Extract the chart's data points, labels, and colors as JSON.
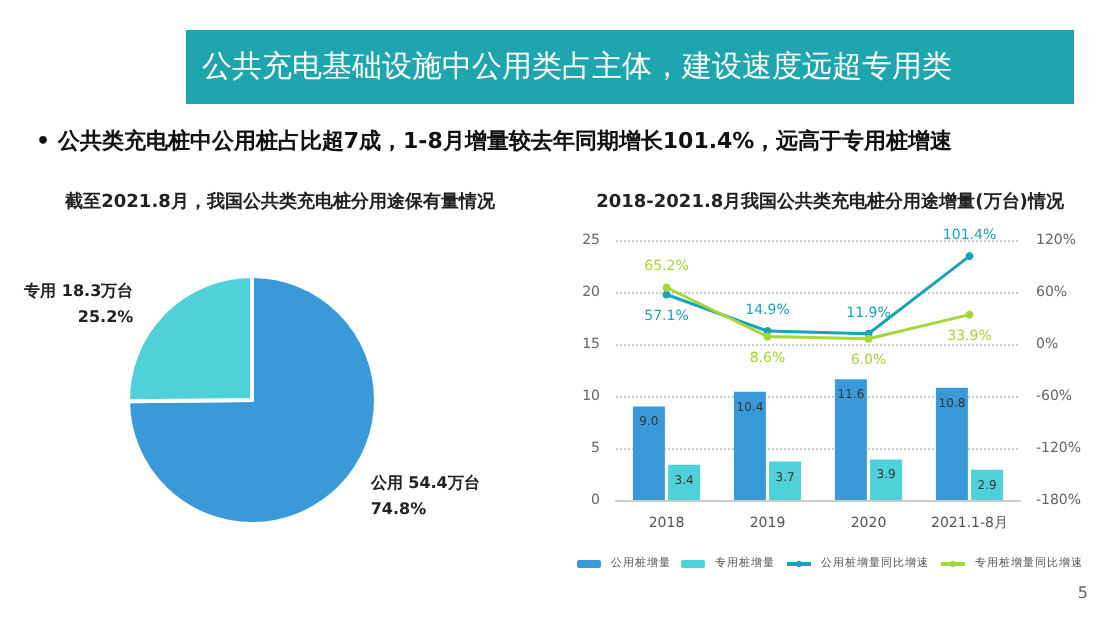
{
  "chart_data": [
    {
      "type": "pie",
      "title": "截至2021.8月，我国公共类充电桩分用途保有量情况",
      "categories": [
        "公用",
        "专用"
      ],
      "values": [
        54.4,
        18.3
      ],
      "colors": [
        "#3a9ad9",
        "#4fd1d9"
      ],
      "value_labels": [
        "54.4万台\n74.8%",
        "18.3万台\n25.2%"
      ],
      "annotations": [
        "公共充电基础设施中公用类占主体，建设速度远超专用类",
        "• 公共类充电桩中公用桩占比超7成，1-8月增量较去年同期增长101.4%，远高于专用桩增速",
        "5"
      ]
    },
    {
      "type": "bar",
      "title": "2018-2021.8月我国公共类充电桩分用途增量(万台)情况",
      "categories": [
        "2018",
        "2019",
        "2020",
        "2021.1-8月"
      ],
      "series": [
        {
          "name": "公用桩增量",
          "color": "#3a9ad9",
          "values": [
            9.0,
            10.4,
            11.6,
            10.8
          ],
          "value_labels": [
            "9.0",
            "10.4",
            "11.6",
            "10.8"
          ]
        },
        {
          "name": "专用桩增量",
          "color": "#4fd1d9",
          "values": [
            3.4,
            3.7,
            3.9,
            2.9
          ],
          "value_labels": [
            "3.4",
            "3.7",
            "3.9",
            "2.9"
          ]
        },
        {
          "name": "公用桩增量同比增速",
          "type": "line",
          "axis": "y2",
          "color": "#1aa3b8",
          "values": [
            57.1,
            14.9,
            11.9,
            101.4
          ],
          "value_labels": [
            "57.1%",
            "14.9%",
            "11.9%",
            "101.4%"
          ]
        },
        {
          "name": "专用桩增量同比增速",
          "type": "line",
          "axis": "y2",
          "color": "#a5d63a",
          "values": [
            65.2,
            8.6,
            6.0,
            33.9
          ],
          "value_labels": [
            "65.2%",
            "8.6%",
            "6.0%",
            "33.9%"
          ]
        }
      ],
      "ylim": [
        0,
        25
      ],
      "yticks": [
        0,
        5,
        10,
        15,
        20,
        25
      ],
      "y2lim": [
        -180,
        120
      ],
      "y2ticks": [
        {
          "value": -180,
          "label": "-180%"
        },
        {
          "value": -120,
          "label": "-120%"
        },
        {
          "value": -60,
          "label": "-60%"
        },
        {
          "value": 0,
          "label": "0%"
        },
        {
          "value": 60,
          "label": "60%"
        },
        {
          "value": 120,
          "label": "120%"
        }
      ],
      "grid": "y",
      "legend": "bottom",
      "marker": "circle"
    }
  ]
}
